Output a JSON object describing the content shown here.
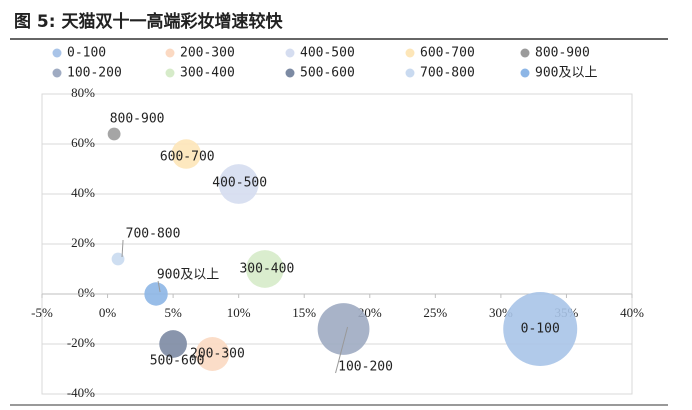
{
  "chart_data": {
    "type": "bubble",
    "title": "图 5:  天猫双十一高端彩妆增速较快",
    "xlim": [
      -5,
      40
    ],
    "xticks": [
      {
        "value": -5,
        "label": "-5%"
      },
      {
        "value": 0,
        "label": "0%"
      },
      {
        "value": 5,
        "label": "5%"
      },
      {
        "value": 10,
        "label": "10%"
      },
      {
        "value": 15,
        "label": "15%"
      },
      {
        "value": 20,
        "label": "20%"
      },
      {
        "value": 25,
        "label": "25%"
      },
      {
        "value": 30,
        "label": "30%"
      },
      {
        "value": 35,
        "label": "35%"
      },
      {
        "value": 40,
        "label": "40%"
      }
    ],
    "ylim": [
      -40,
      80
    ],
    "yticks": [
      {
        "value": -40,
        "label": "-40%"
      },
      {
        "value": -20,
        "label": "-20%"
      },
      {
        "value": 0,
        "label": "0%"
      },
      {
        "value": 20,
        "label": "20%"
      },
      {
        "value": 40,
        "label": "40%"
      },
      {
        "value": 60,
        "label": "60%"
      },
      {
        "value": 80,
        "label": "80%"
      }
    ],
    "grid": true,
    "legend": "top",
    "series": [
      {
        "name": "0-100",
        "color": "#a9c4e8",
        "x": 33,
        "y": -14,
        "size": 100
      },
      {
        "name": "100-200",
        "color": "#9fabc2",
        "x": 18,
        "y": -14,
        "size": 49
      },
      {
        "name": "200-300",
        "color": "#fbd9c2",
        "x": 8,
        "y": -24,
        "size": 21
      },
      {
        "name": "300-400",
        "color": "#d6ebc9",
        "x": 12,
        "y": 10,
        "size": 26
      },
      {
        "name": "400-500",
        "color": "#d5ddf0",
        "x": 10,
        "y": 44,
        "size": 29
      },
      {
        "name": "500-600",
        "color": "#7c8aa3",
        "x": 5,
        "y": -20,
        "size": 14
      },
      {
        "name": "600-700",
        "color": "#fde6b8",
        "x": 6,
        "y": 56,
        "size": 16
      },
      {
        "name": "700-800",
        "color": "#c9daf0",
        "x": 0.8,
        "y": 14,
        "size": 3
      },
      {
        "name": "800-900",
        "color": "#9b9b9b",
        "x": 0.5,
        "y": 64,
        "size": 3
      },
      {
        "name": "900及以上",
        "color": "#8db6e6",
        "x": 3.7,
        "y": 0,
        "size": 10
      }
    ]
  }
}
